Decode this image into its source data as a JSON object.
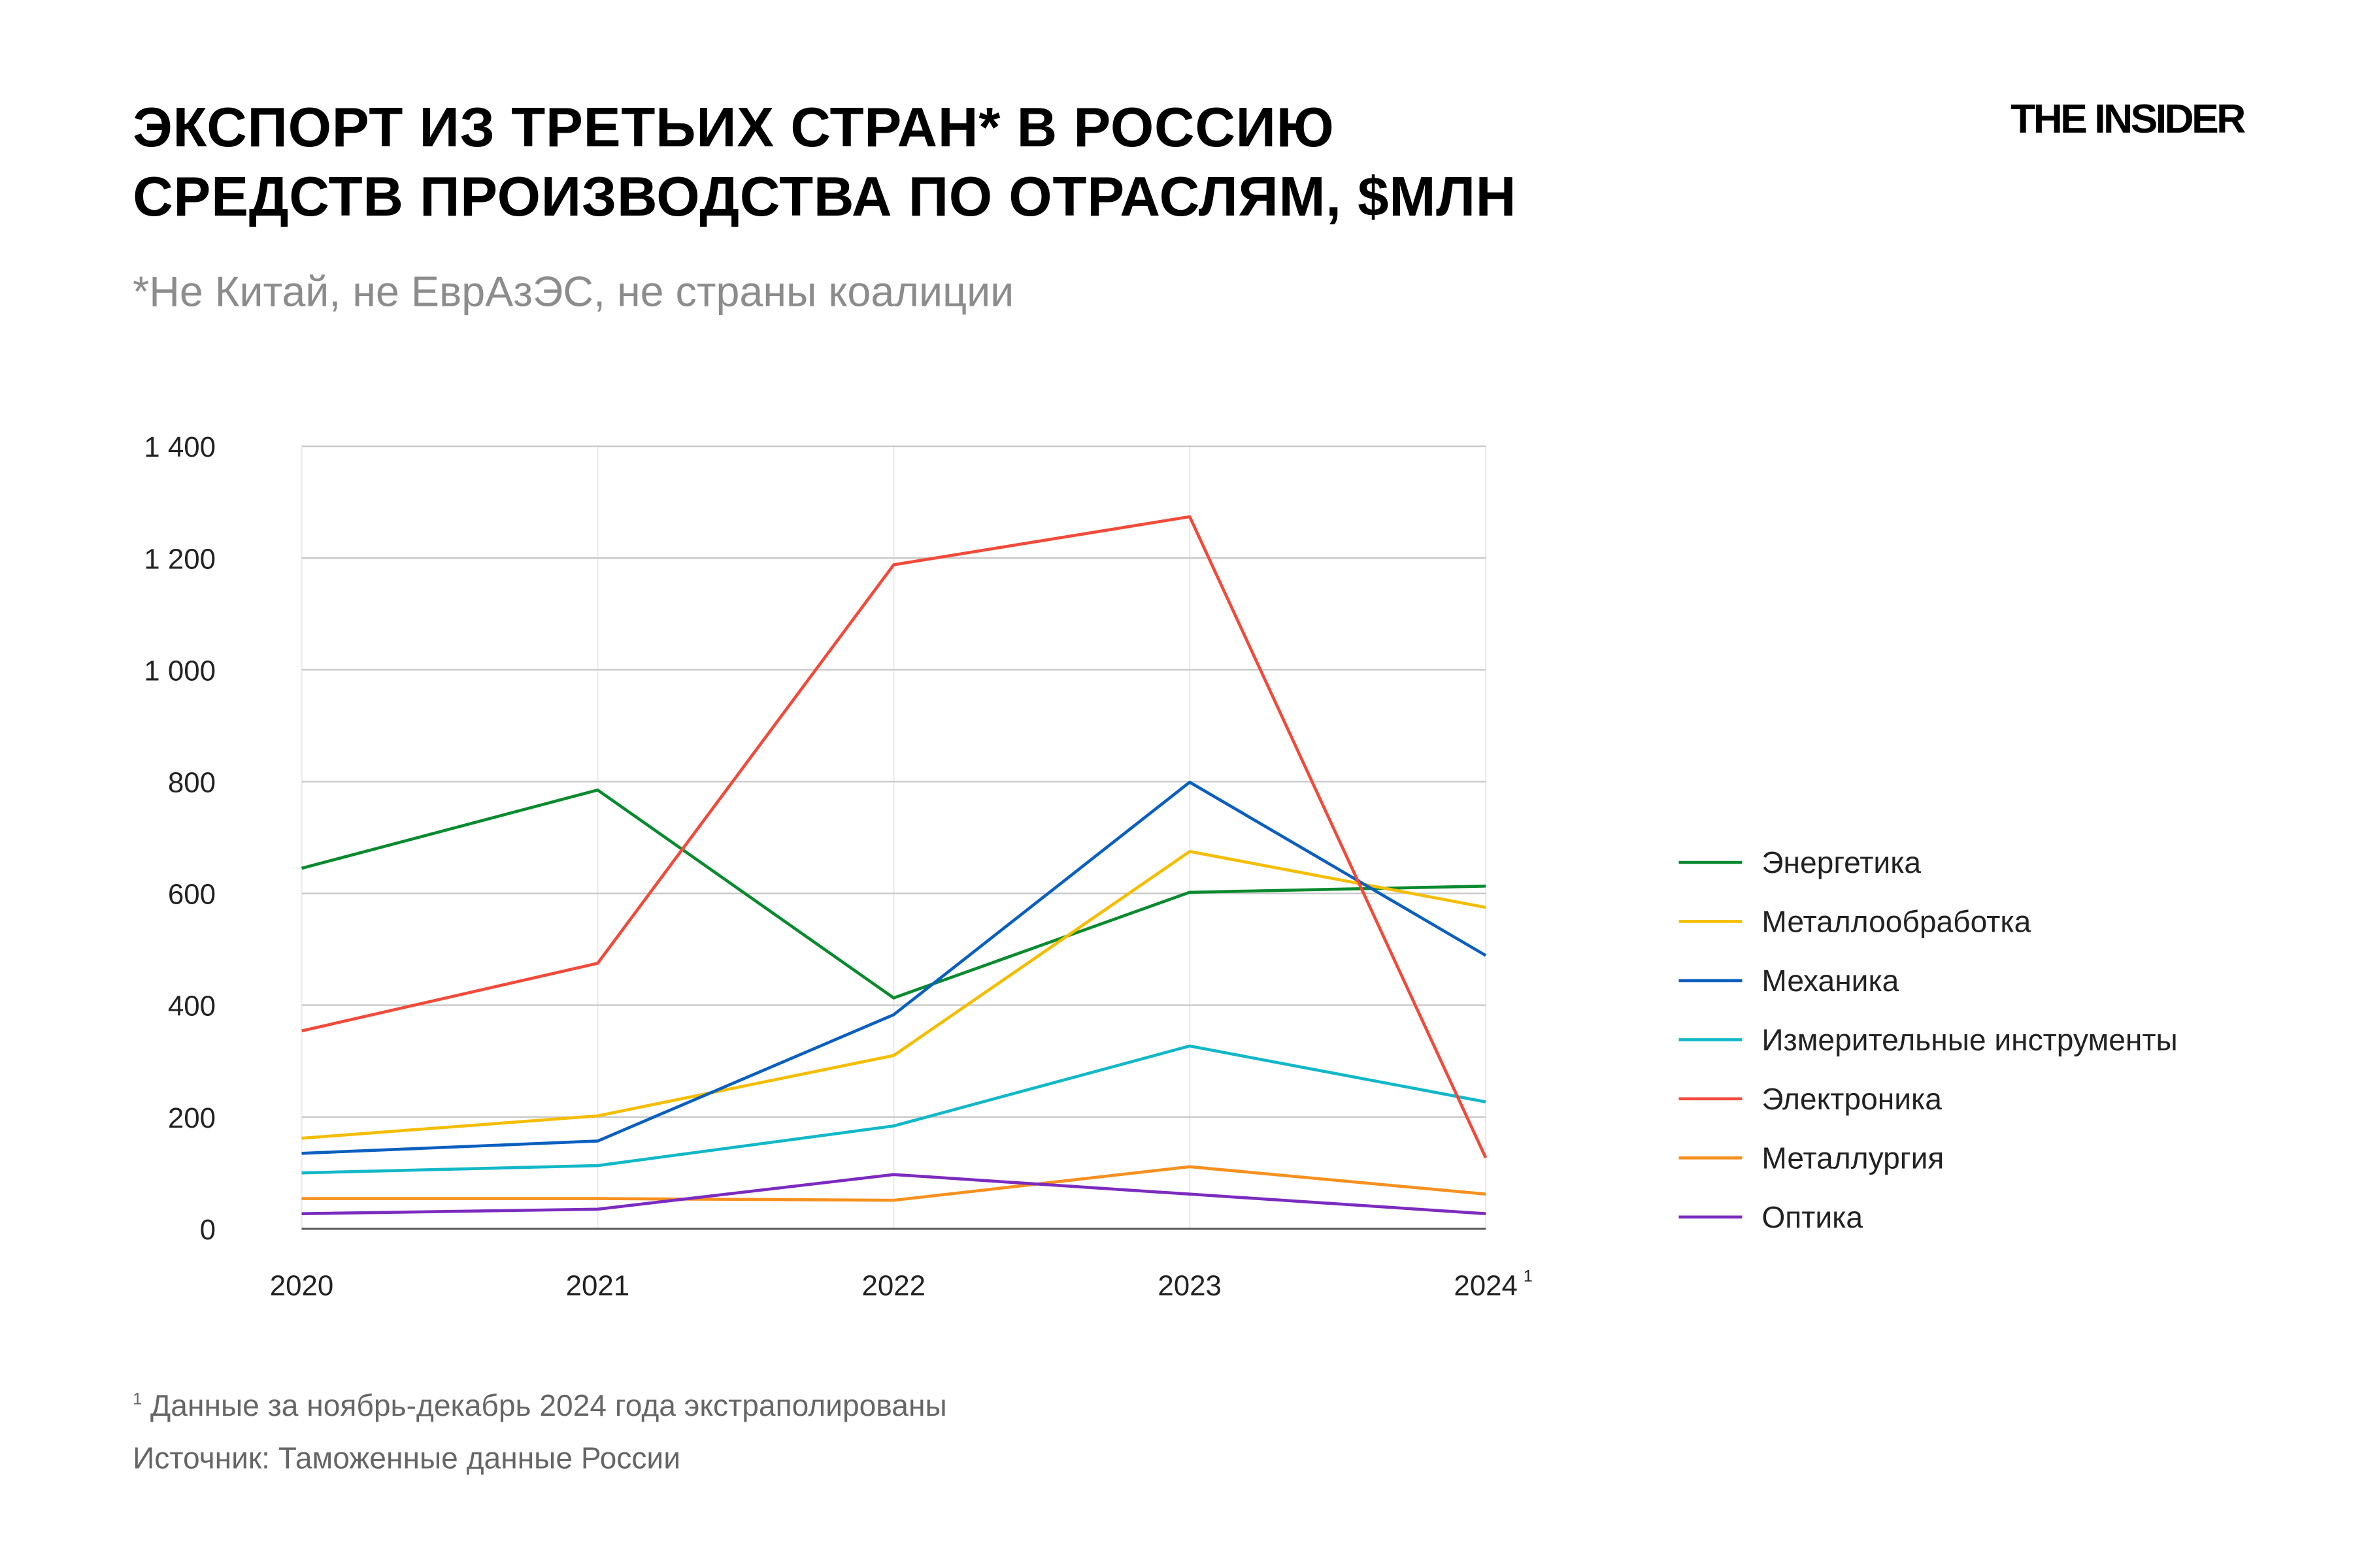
{
  "header": {
    "title_line1": "ЭКСПОРТ ИЗ ТРЕТЬИХ СТРАН* В РОССИЮ",
    "title_line2": "СРЕДСТВ ПРОИЗВОДСТВА ПО ОТРАСЛЯМ, $МЛН",
    "subtitle": "*Не Китай, не ЕврАзЭС, не страны коалиции",
    "logo": "THE INSIDER"
  },
  "footer": {
    "footnote_mark": "1",
    "footnote": "Данные за ноябрь-декабрь 2024 года экстраполированы",
    "source": "Источник: Таможенные данные России"
  },
  "chart_data": {
    "type": "line",
    "title": "",
    "xlabel": "",
    "ylabel": "",
    "categories": [
      "2020",
      "2021",
      "2022",
      "2023",
      "2024"
    ],
    "x_footnote_mark": "1",
    "ylim": [
      0,
      1400
    ],
    "yticks": [
      0,
      200,
      400,
      600,
      800,
      1000,
      1200,
      1400
    ],
    "ytick_labels": [
      "0",
      "200",
      "400",
      "600",
      "800",
      "1 000",
      "1 200",
      "1 400"
    ],
    "grid": true,
    "legend_position": "right",
    "series": [
      {
        "name": "Энергетика",
        "color": "#0a8a2e",
        "values": [
          645,
          785,
          413,
          602,
          613
        ]
      },
      {
        "name": "Металлообработка",
        "color": "#f5bd00",
        "values": [
          162,
          202,
          310,
          675,
          575
        ]
      },
      {
        "name": "Механика",
        "color": "#0a5fbf",
        "values": [
          135,
          157,
          383,
          799,
          489
        ]
      },
      {
        "name": "Измерительные инструменты",
        "color": "#12b8c8",
        "values": [
          100,
          113,
          184,
          327,
          227
        ]
      },
      {
        "name": "Электроника",
        "color": "#f24a3a",
        "values": [
          354,
          475,
          1188,
          1274,
          127
        ]
      },
      {
        "name": "Металлургия",
        "color": "#f7901e",
        "values": [
          54,
          54,
          51,
          111,
          62
        ]
      },
      {
        "name": "Оптика",
        "color": "#7b2bbf",
        "values": [
          27,
          35,
          97,
          62,
          27
        ]
      }
    ]
  }
}
